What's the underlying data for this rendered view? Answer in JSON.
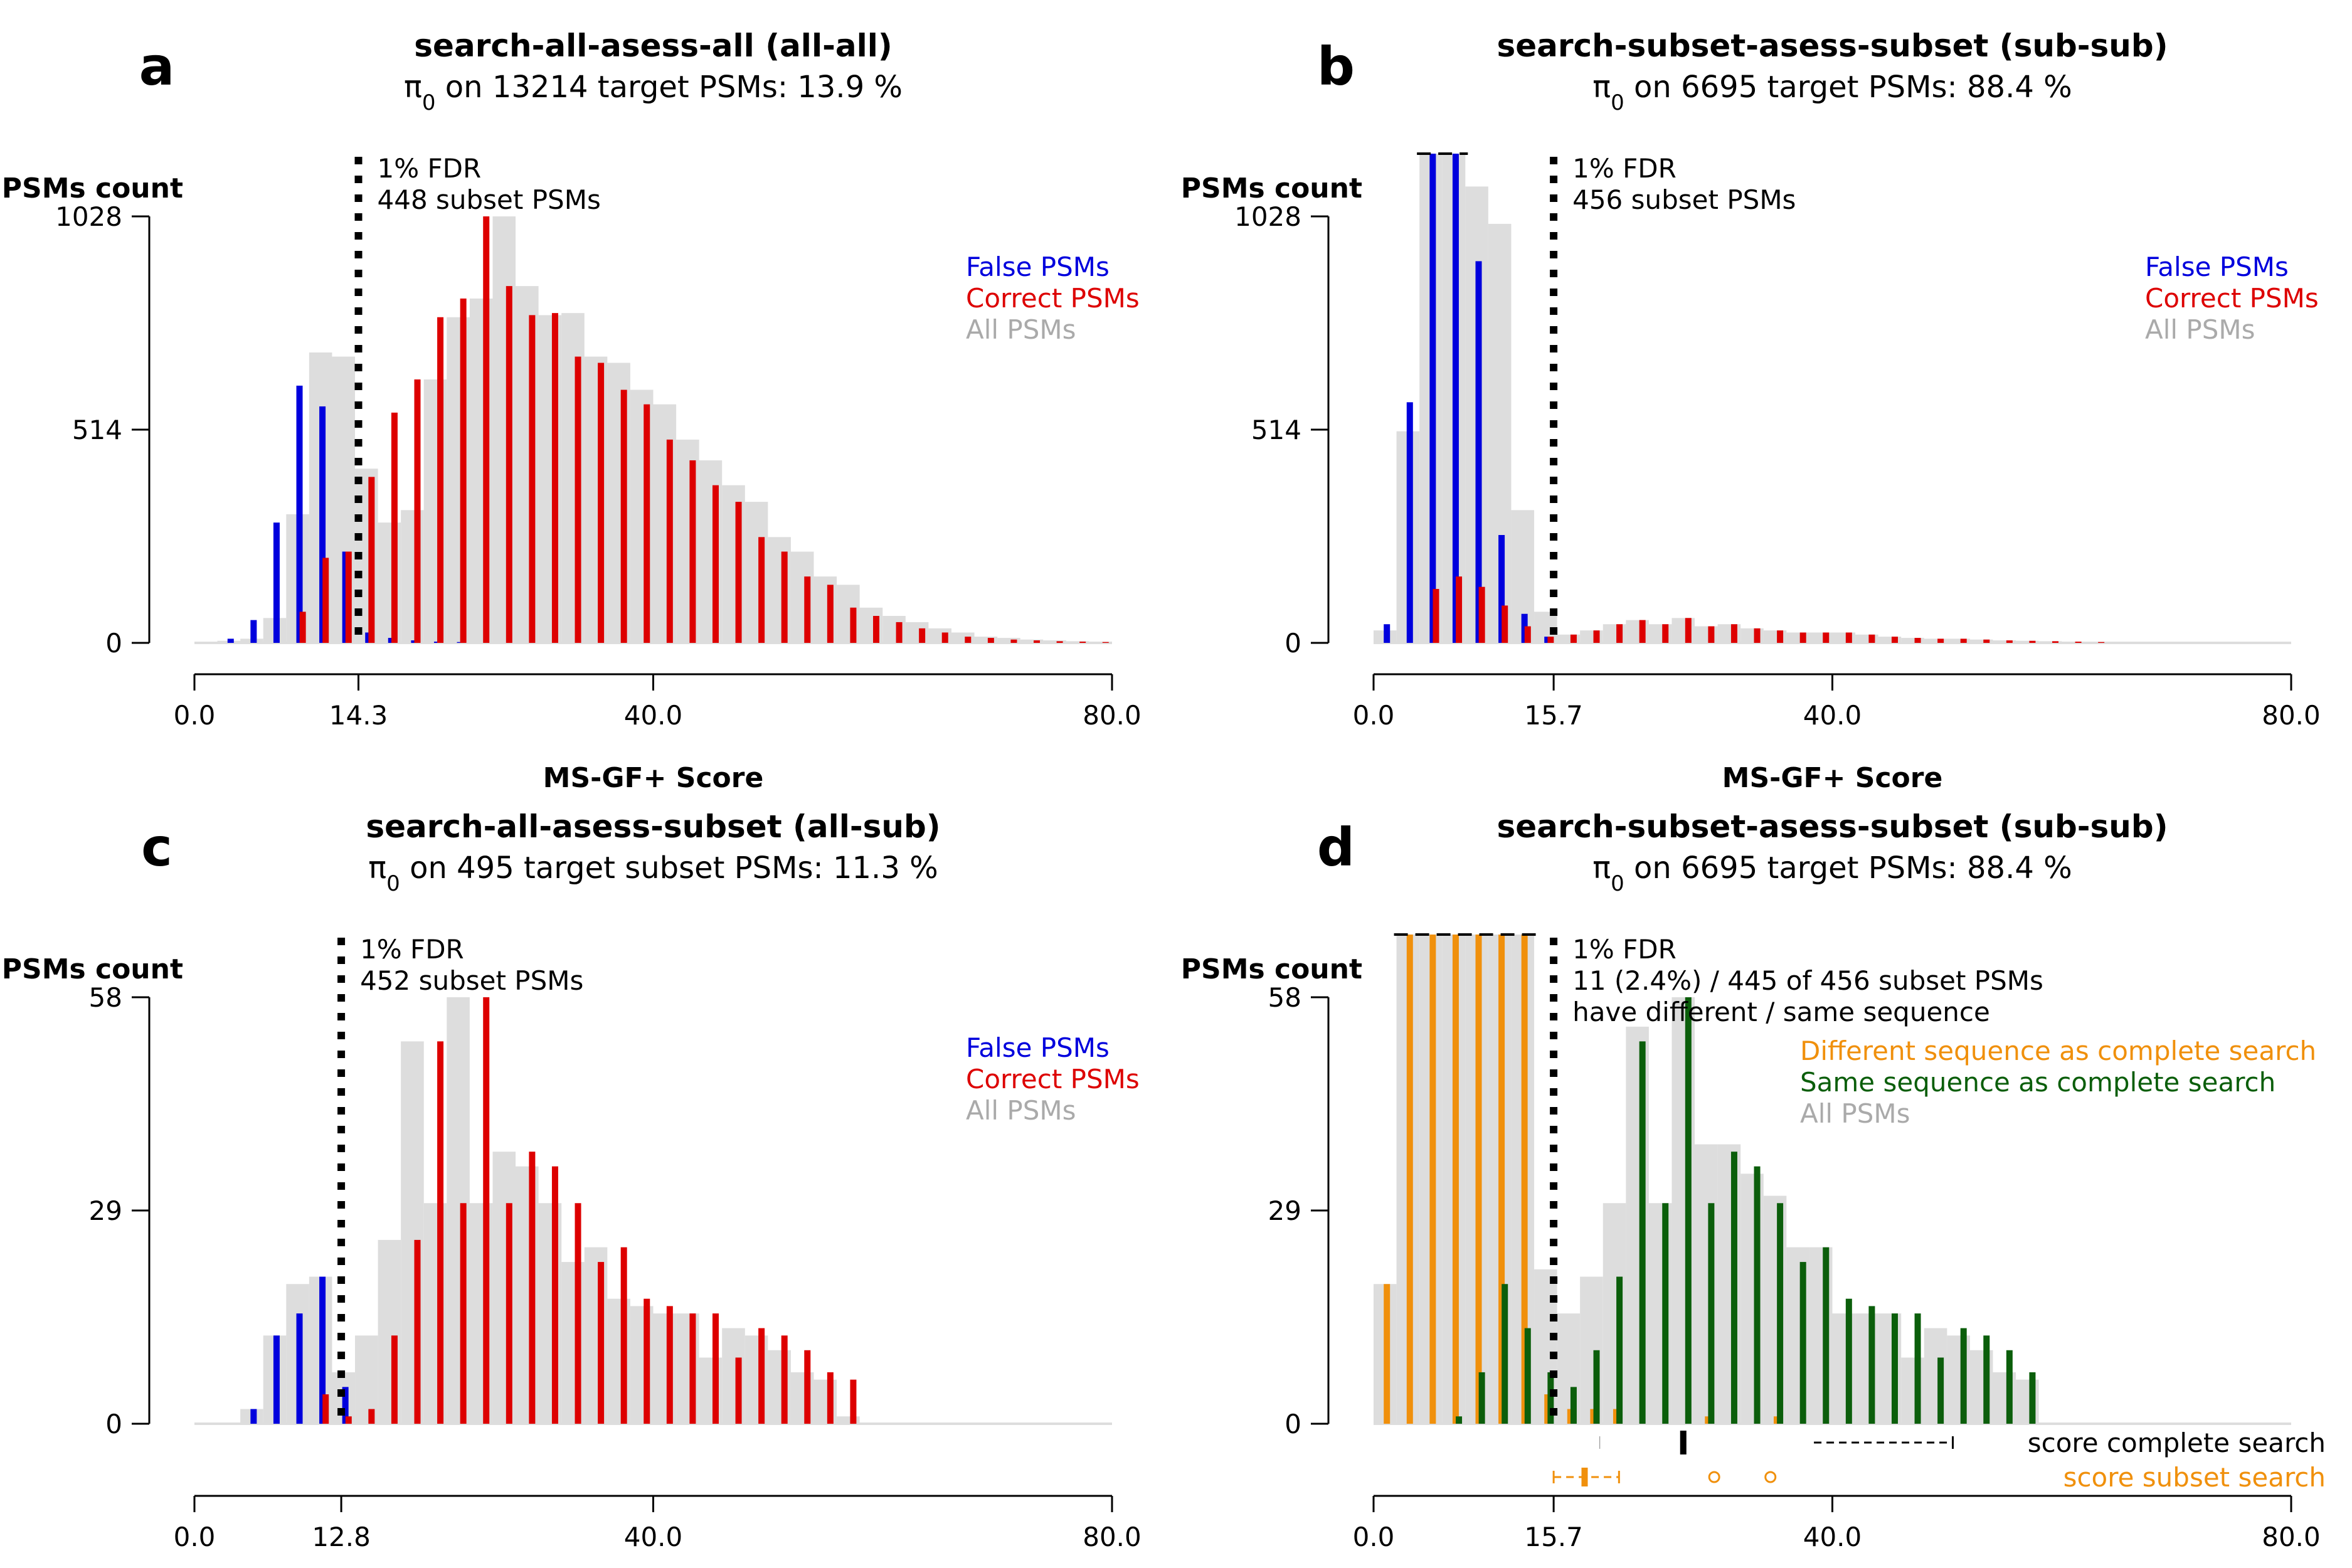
{
  "chart_data": [
    {
      "panel": "a",
      "type": "bar",
      "title": "search-all-asess-all (all-all)",
      "subtitle_main": "π",
      "subtitle_sub": "0",
      "subtitle_rest": " on 13214 target PSMs:  13.9 %",
      "ylabel": "PSMs count",
      "xlabel": "MS-GF+ Score",
      "xlim": [
        0,
        80
      ],
      "ylim": [
        0,
        1028
      ],
      "xticks": [
        "0.0",
        "14.3",
        "40.0",
        "80.0"
      ],
      "xtick_values": [
        0,
        14.3,
        40,
        80
      ],
      "yticks": [
        "0",
        "514",
        "1028"
      ],
      "ytick_values": [
        0,
        514,
        1028
      ],
      "fdr_x": 14.3,
      "fdr_lines": [
        "1% FDR",
        "448 subset PSMs"
      ],
      "legend": [
        {
          "label": "False PSMs",
          "color": "#0000dd"
        },
        {
          "label": "Correct PSMs",
          "color": "#dd0000"
        },
        {
          "label": "All PSMs",
          "color": "#aaaaaa"
        }
      ],
      "series": [
        {
          "name": "All PSMs",
          "color": "#dddddd",
          "kind": "hist",
          "x": [
            0,
            2,
            4,
            6,
            8,
            10,
            12,
            14,
            16,
            18,
            20,
            22,
            24,
            26,
            28,
            30,
            32,
            34,
            36,
            38,
            40,
            42,
            44,
            46,
            48,
            50,
            52,
            54,
            56,
            58,
            60,
            62,
            64,
            66,
            68,
            70,
            72,
            74,
            76,
            78
          ],
          "values": [
            0,
            5,
            10,
            60,
            310,
            700,
            690,
            420,
            290,
            320,
            635,
            785,
            830,
            1028,
            860,
            790,
            795,
            690,
            675,
            610,
            575,
            490,
            440,
            380,
            340,
            255,
            220,
            160,
            140,
            85,
            65,
            50,
            35,
            25,
            15,
            12,
            8,
            6,
            4,
            3
          ]
        },
        {
          "name": "False PSMs",
          "color": "#0000dd",
          "kind": "bars",
          "x": [
            0,
            2,
            4,
            6,
            8,
            10,
            12,
            14,
            16,
            18,
            20,
            22
          ],
          "values": [
            0,
            10,
            55,
            290,
            620,
            570,
            220,
            25,
            12,
            6,
            3,
            2
          ]
        },
        {
          "name": "Correct PSMs",
          "color": "#dd0000",
          "kind": "bars",
          "x": [
            8,
            10,
            12,
            14,
            16,
            18,
            20,
            22,
            24,
            26,
            28,
            30,
            32,
            34,
            36,
            38,
            40,
            42,
            44,
            46,
            48,
            50,
            52,
            54,
            56,
            58,
            60,
            62,
            64,
            66,
            68,
            70,
            72,
            74,
            76,
            78
          ],
          "values": [
            75,
            205,
            220,
            400,
            555,
            635,
            785,
            830,
            1028,
            860,
            790,
            795,
            690,
            675,
            610,
            575,
            490,
            440,
            380,
            340,
            255,
            220,
            160,
            140,
            85,
            65,
            50,
            35,
            25,
            15,
            12,
            8,
            6,
            4,
            3,
            2
          ]
        }
      ]
    },
    {
      "panel": "b",
      "type": "bar",
      "title": "search-subset-asess-subset (sub-sub)",
      "subtitle_main": "π",
      "subtitle_sub": "0",
      "subtitle_rest": " on 6695 target PSMs:  88.4 %",
      "ylabel": "PSMs count",
      "xlabel": "MS-GF+ Score",
      "xlim": [
        0,
        80
      ],
      "ylim": [
        0,
        1028
      ],
      "xticks": [
        "0.0",
        "15.7",
        "40.0",
        "80.0"
      ],
      "xtick_values": [
        0,
        15.7,
        40,
        80
      ],
      "yticks": [
        "0",
        "514",
        "1028"
      ],
      "ytick_values": [
        0,
        514,
        1028
      ],
      "fdr_x": 15.7,
      "fdr_lines": [
        "1% FDR",
        "456 subset PSMs"
      ],
      "legend": [
        {
          "label": "False PSMs",
          "color": "#0000dd"
        },
        {
          "label": "Correct PSMs",
          "color": "#dd0000"
        },
        {
          "label": "All PSMs",
          "color": "#aaaaaa"
        }
      ],
      "series": [
        {
          "name": "All PSMs",
          "color": "#dddddd",
          "kind": "hist",
          "x": [
            0,
            2,
            4,
            6,
            8,
            10,
            12,
            14,
            16,
            18,
            20,
            22,
            24,
            26,
            28,
            30,
            32,
            34,
            36,
            38,
            40,
            42,
            44,
            46,
            48,
            50,
            52,
            54,
            56,
            58,
            60,
            62,
            64,
            66,
            68,
            70,
            72,
            74,
            76,
            78
          ],
          "values": [
            30,
            510,
            1180,
            1180,
            1100,
            1010,
            320,
            75,
            20,
            30,
            45,
            55,
            45,
            60,
            40,
            45,
            35,
            30,
            25,
            25,
            25,
            20,
            15,
            12,
            10,
            10,
            8,
            6,
            5,
            4,
            3,
            2,
            2,
            1,
            1,
            1,
            0,
            0,
            0,
            0
          ]
        },
        {
          "name": "False PSMs",
          "color": "#0000dd",
          "kind": "bars",
          "x": [
            0,
            2,
            4,
            6,
            8,
            10,
            12,
            14
          ],
          "values": [
            45,
            580,
            1180,
            1180,
            920,
            260,
            70,
            15
          ]
        },
        {
          "name": "Correct PSMs",
          "color": "#dd0000",
          "kind": "bars",
          "x": [
            4,
            6,
            8,
            10,
            12,
            14,
            16,
            18,
            20,
            22,
            24,
            26,
            28,
            30,
            32,
            34,
            36,
            38,
            40,
            42,
            44,
            46,
            48,
            50,
            52,
            54,
            56,
            58,
            60,
            62
          ],
          "values": [
            130,
            160,
            135,
            90,
            40,
            15,
            20,
            30,
            45,
            55,
            45,
            60,
            40,
            45,
            35,
            30,
            25,
            25,
            25,
            20,
            15,
            12,
            10,
            10,
            8,
            6,
            5,
            4,
            3,
            2
          ]
        }
      ]
    },
    {
      "panel": "c",
      "type": "bar",
      "title": "search-all-asess-subset (all-sub)",
      "subtitle_main": "π",
      "subtitle_sub": "0",
      "subtitle_rest": " on 495 target subset PSMs:  11.3 %",
      "ylabel": "PSMs count",
      "xlabel": "MS-GF+ Score",
      "xlim": [
        0,
        80
      ],
      "ylim": [
        0,
        58
      ],
      "xticks": [
        "0.0",
        "12.8",
        "40.0",
        "80.0"
      ],
      "xtick_values": [
        0,
        12.8,
        40,
        80
      ],
      "yticks": [
        "0",
        "29",
        "58"
      ],
      "ytick_values": [
        0,
        29,
        58
      ],
      "fdr_x": 12.8,
      "fdr_lines": [
        "1% FDR",
        "452 subset PSMs"
      ],
      "legend": [
        {
          "label": "False PSMs",
          "color": "#0000dd"
        },
        {
          "label": "Correct PSMs",
          "color": "#dd0000"
        },
        {
          "label": "All PSMs",
          "color": "#aaaaaa"
        }
      ],
      "series": [
        {
          "name": "All PSMs",
          "color": "#dddddd",
          "kind": "hist",
          "x": [
            4,
            6,
            8,
            10,
            12,
            14,
            16,
            18,
            20,
            22,
            24,
            26,
            28,
            30,
            32,
            34,
            36,
            38,
            40,
            42,
            44,
            46,
            48,
            50,
            52,
            54,
            56
          ],
          "values": [
            2,
            12,
            19,
            20,
            7,
            12,
            25,
            52,
            30,
            58,
            30,
            37,
            35,
            30,
            22,
            24,
            17,
            16,
            15,
            15,
            9,
            13,
            12,
            10,
            7,
            6,
            1
          ]
        },
        {
          "name": "False PSMs",
          "color": "#0000dd",
          "kind": "bars",
          "x": [
            4,
            6,
            8,
            10,
            12
          ],
          "values": [
            2,
            12,
            15,
            20,
            5
          ]
        },
        {
          "name": "Correct PSMs",
          "color": "#dd0000",
          "kind": "bars",
          "x": [
            10,
            12,
            14,
            16,
            18,
            20,
            22,
            24,
            26,
            28,
            30,
            32,
            34,
            36,
            38,
            40,
            42,
            44,
            46,
            48,
            50,
            52,
            54,
            56
          ],
          "values": [
            4,
            1,
            2,
            12,
            25,
            52,
            30,
            58,
            30,
            37,
            35,
            30,
            22,
            24,
            17,
            16,
            15,
            15,
            9,
            13,
            12,
            10,
            7,
            6
          ]
        }
      ]
    },
    {
      "panel": "d",
      "type": "bar",
      "title": "search-subset-asess-subset (sub-sub)",
      "subtitle_main": "π",
      "subtitle_sub": "0",
      "subtitle_rest": " on 6695 target PSMs:  88.4 %",
      "ylabel": "PSMs count",
      "xlabel": "MS-GF+ Score",
      "xlim": [
        0,
        80
      ],
      "ylim": [
        0,
        58
      ],
      "xticks": [
        "0.0",
        "15.7",
        "40.0",
        "80.0"
      ],
      "xtick_values": [
        0,
        15.7,
        40,
        80
      ],
      "yticks": [
        "0",
        "29",
        "58"
      ],
      "ytick_values": [
        0,
        29,
        58
      ],
      "fdr_x": 15.7,
      "fdr_lines": [
        "1% FDR",
        "11 (2.4%) / 445 of 456 subset PSMs",
        "have different / same sequence"
      ],
      "legend": [
        {
          "label": "Different sequence as complete search",
          "color": "#f0900c"
        },
        {
          "label": "Same sequence as complete search",
          "color": "#0b5e0b"
        },
        {
          "label": "All PSMs",
          "color": "#aaaaaa"
        }
      ],
      "series": [
        {
          "name": "All PSMs",
          "color": "#dddddd",
          "kind": "hist",
          "x": [
            0,
            2,
            4,
            6,
            8,
            10,
            12,
            14,
            16,
            18,
            20,
            22,
            24,
            26,
            28,
            30,
            32,
            34,
            36,
            38,
            40,
            42,
            44,
            46,
            48,
            50,
            52,
            54,
            56
          ],
          "values": [
            19,
            67,
            67,
            67,
            67,
            67,
            67,
            21,
            15,
            20,
            30,
            54,
            30,
            58,
            38,
            38,
            34,
            31,
            24,
            24,
            15,
            15,
            15,
            9,
            13,
            12,
            10,
            7,
            6
          ]
        },
        {
          "name": "Different sequence as complete search",
          "color": "#f0900c",
          "kind": "bars",
          "x": [
            0,
            2,
            4,
            6,
            8,
            10,
            12,
            14,
            16,
            18,
            20,
            28,
            34
          ],
          "values": [
            19,
            67,
            67,
            67,
            67,
            67,
            67,
            4,
            2,
            2,
            2,
            1,
            1
          ]
        },
        {
          "name": "Same sequence as complete search",
          "color": "#0b5e0b",
          "kind": "bars",
          "x": [
            6,
            8,
            10,
            12,
            14,
            16,
            18,
            20,
            22,
            24,
            26,
            28,
            30,
            32,
            34,
            36,
            38,
            40,
            42,
            44,
            46,
            48,
            50,
            52,
            54,
            56
          ],
          "values": [
            1,
            7,
            19,
            13,
            7,
            5,
            10,
            20,
            52,
            30,
            58,
            30,
            37,
            35,
            30,
            22,
            24,
            17,
            16,
            15,
            15,
            9,
            13,
            12,
            10,
            7
          ]
        }
      ],
      "boxplots": [
        {
          "label": "score complete search",
          "color": "#000000",
          "whisker": [
            19.8,
            50.5
          ],
          "box": [
            19.8,
            38.2
          ],
          "median": 27,
          "outliers": []
        },
        {
          "label": "score subset search",
          "color": "#f0900c",
          "whisker": [
            15.7,
            21.4
          ],
          "box": [
            18.3,
            18.5
          ],
          "median": 18.4,
          "outliers": [
            29.7,
            34.6
          ]
        }
      ]
    }
  ]
}
